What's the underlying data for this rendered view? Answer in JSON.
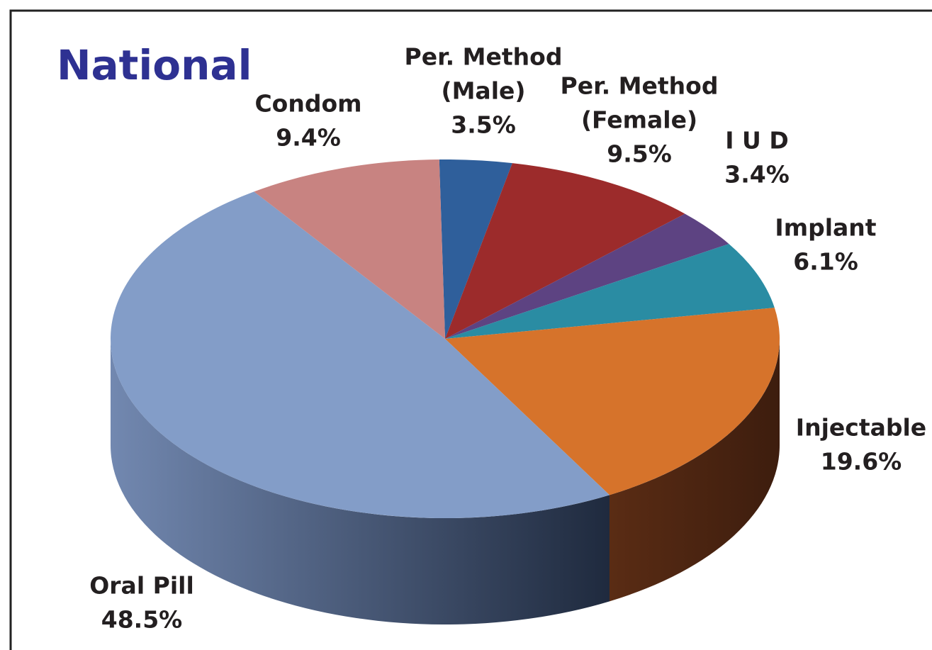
{
  "chart_data": {
    "type": "pie",
    "title": "National",
    "categories": [
      [
        "Per. Method",
        "(Male)"
      ],
      [
        "Per. Method",
        "(Female)"
      ],
      [
        "I U D"
      ],
      [
        "Implant"
      ],
      [
        "Injectable"
      ],
      [
        "Oral Pill"
      ],
      [
        "Condom"
      ]
    ],
    "values": [
      3.5,
      9.5,
      3.4,
      6.1,
      19.6,
      48.5,
      9.4
    ],
    "value_labels": [
      "3.5%",
      "9.5%",
      "3.4%",
      "6.1%",
      "19.6%",
      "48.5%",
      "9.4%"
    ],
    "colors": [
      "#2f5f9b",
      "#9c2b2b",
      "#5d4382",
      "#2a8ca3",
      "#d6732b",
      "#839dc8",
      "#c88381"
    ],
    "side_colors": [
      "#1d3b61",
      "#5e1a1a",
      "#3a2951",
      "#1a5766",
      "#3d1d0e",
      "#1f2a3e",
      "#7d5150"
    ],
    "side_light_colors": [
      "#3d6ea8",
      "#8a3030",
      "#5d4382",
      "#2a8ca3",
      "#5a2c14",
      "#7288b0",
      "#a06a68"
    ]
  }
}
